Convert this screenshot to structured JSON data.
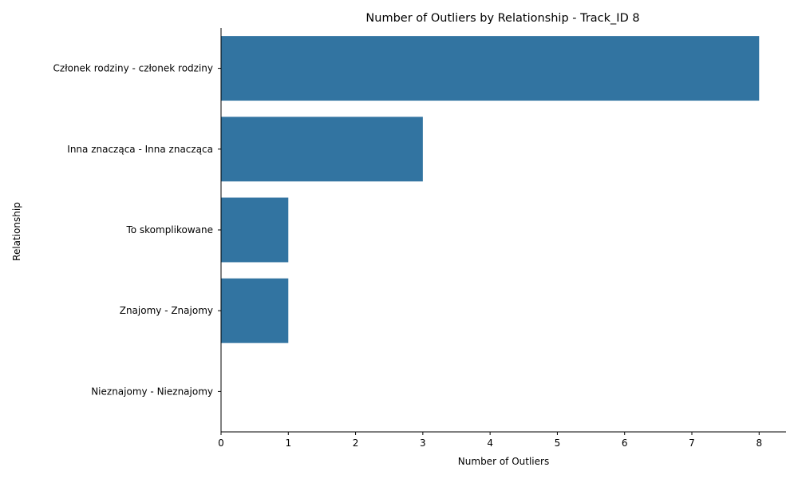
{
  "chart_data": {
    "type": "bar",
    "orientation": "horizontal",
    "title": "Number of Outliers by Relationship - Track_ID 8",
    "xlabel": "Number of Outliers",
    "ylabel": "Relationship",
    "categories": [
      "Członek rodziny - członek rodziny",
      "Inna znacząca - Inna znacząca",
      "To skomplikowane",
      "Znajomy - Znajomy",
      "Nieznajomy - Nieznajomy"
    ],
    "values": [
      8,
      3,
      1,
      1,
      0
    ],
    "xlim": [
      0,
      8.4
    ],
    "xticks": [
      "0",
      "1",
      "2",
      "3",
      "4",
      "5",
      "6",
      "7",
      "8"
    ],
    "grid": false,
    "bar_color": "#3274a1",
    "legend": "none"
  }
}
